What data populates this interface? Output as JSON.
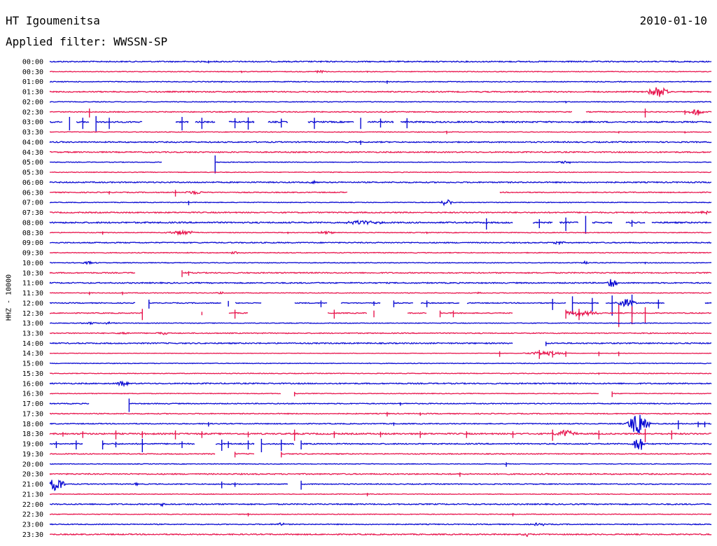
{
  "header": {
    "station": "HT Igoumenitsa",
    "filter": "Applied filter: WWSSN-SP",
    "date": "2010-01-10"
  },
  "chart_data": {
    "type": "seismogram-helicorder",
    "ylabel": "HHZ - 10000",
    "colors": {
      "even": "#0a0ad2",
      "odd": "#e8174f"
    },
    "rows": [
      {
        "label": "00:00",
        "noise": 1,
        "gaps": [],
        "spikes": [
          [
            0.24,
            2.5
          ],
          [
            0.41,
            1.5
          ]
        ],
        "bursts": []
      },
      {
        "label": "00:30",
        "noise": 0.6,
        "gaps": [],
        "spikes": [
          [
            0.29,
            2
          ],
          [
            0.48,
            1.5
          ]
        ],
        "bursts": [
          [
            0.41,
            0.015,
            2
          ]
        ]
      },
      {
        "label": "01:00",
        "noise": 0.7,
        "gaps": [],
        "spikes": [
          [
            0.51,
            3
          ],
          [
            0.26,
            1.5
          ]
        ],
        "bursts": []
      },
      {
        "label": "01:30",
        "noise": 1,
        "gaps": [],
        "spikes": [],
        "bursts": [
          [
            0.92,
            0.02,
            9
          ]
        ]
      },
      {
        "label": "02:00",
        "noise": 0.6,
        "gaps": [],
        "spikes": [
          [
            0.78,
            2
          ],
          [
            0.28,
            1.5
          ]
        ],
        "bursts": []
      },
      {
        "label": "02:30",
        "noise": 0.8,
        "gaps": [
          [
            0.79,
            0.81
          ]
        ],
        "spikes": [
          [
            0.06,
            8
          ],
          [
            0.9,
            8
          ],
          [
            0.96,
            4
          ],
          [
            0.98,
            5
          ]
        ],
        "bursts": [
          [
            0.975,
            0.02,
            4
          ]
        ]
      },
      {
        "label": "03:00",
        "noise": 1.2,
        "gaps": [
          [
            0.02,
            0.04
          ],
          [
            0.06,
            0.07
          ],
          [
            0.14,
            0.19
          ],
          [
            0.21,
            0.22
          ],
          [
            0.25,
            0.27
          ],
          [
            0.31,
            0.33
          ],
          [
            0.36,
            0.39
          ],
          [
            0.46,
            0.48
          ],
          [
            0.52,
            0.53
          ]
        ],
        "spikes": [
          [
            0.03,
            12
          ],
          [
            0.05,
            10
          ],
          [
            0.07,
            14
          ],
          [
            0.09,
            10
          ],
          [
            0.2,
            12
          ],
          [
            0.23,
            10
          ],
          [
            0.28,
            9
          ],
          [
            0.3,
            11
          ],
          [
            0.35,
            8
          ],
          [
            0.4,
            10
          ],
          [
            0.47,
            10
          ],
          [
            0.5,
            8
          ],
          [
            0.54,
            9
          ]
        ],
        "bursts": []
      },
      {
        "label": "03:30",
        "noise": 0.6,
        "gaps": [],
        "spikes": [
          [
            0.6,
            3
          ],
          [
            0.86,
            2
          ],
          [
            0.96,
            2
          ]
        ],
        "bursts": []
      },
      {
        "label": "04:00",
        "noise": 1,
        "gaps": [],
        "spikes": [
          [
            0.47,
            4
          ]
        ],
        "bursts": []
      },
      {
        "label": "04:30",
        "noise": 1,
        "gaps": [],
        "spikes": [],
        "bursts": []
      },
      {
        "label": "05:00",
        "noise": 0.6,
        "gaps": [
          [
            0.17,
            0.25
          ]
        ],
        "spikes": [
          [
            0.25,
            16
          ]
        ],
        "bursts": [
          [
            0.78,
            0.02,
            2
          ]
        ]
      },
      {
        "label": "05:30",
        "noise": 0.6,
        "gaps": [],
        "spikes": [],
        "bursts": []
      },
      {
        "label": "06:00",
        "noise": 1,
        "gaps": [],
        "spikes": [],
        "bursts": [
          [
            0.4,
            0.01,
            2
          ]
        ]
      },
      {
        "label": "06:30",
        "noise": 0.8,
        "gaps": [
          [
            0.45,
            0.68
          ]
        ],
        "spikes": [
          [
            0.19,
            6
          ],
          [
            0.09,
            3
          ]
        ],
        "bursts": [
          [
            0.22,
            0.02,
            3
          ]
        ]
      },
      {
        "label": "07:00",
        "noise": 0.6,
        "gaps": [],
        "spikes": [
          [
            0.21,
            4
          ]
        ],
        "bursts": [
          [
            0.6,
            0.01,
            7
          ]
        ]
      },
      {
        "label": "07:30",
        "noise": 1,
        "gaps": [],
        "spikes": [],
        "bursts": [
          [
            0.99,
            0.01,
            3
          ]
        ]
      },
      {
        "label": "08:00",
        "noise": 1.2,
        "gaps": [
          [
            0.7,
            0.73
          ],
          [
            0.76,
            0.77
          ],
          [
            0.8,
            0.82
          ],
          [
            0.85,
            0.87
          ],
          [
            0.9,
            0.91
          ]
        ],
        "spikes": [
          [
            0.66,
            10
          ],
          [
            0.74,
            8
          ],
          [
            0.78,
            12
          ],
          [
            0.81,
            16
          ],
          [
            0.88,
            6
          ]
        ],
        "bursts": [
          [
            0.47,
            0.04,
            3
          ]
        ]
      },
      {
        "label": "08:30",
        "noise": 0.6,
        "gaps": [],
        "spikes": [
          [
            0.08,
            3
          ],
          [
            0.36,
            2
          ],
          [
            0.57,
            2
          ]
        ],
        "bursts": [
          [
            0.2,
            0.03,
            3
          ],
          [
            0.42,
            0.02,
            2
          ]
        ]
      },
      {
        "label": "09:00",
        "noise": 0.9,
        "gaps": [],
        "spikes": [
          [
            0.77,
            3
          ]
        ],
        "bursts": [
          [
            0.77,
            0.01,
            3
          ]
        ]
      },
      {
        "label": "09:30",
        "noise": 0.7,
        "gaps": [],
        "spikes": [],
        "bursts": [
          [
            0.28,
            0.01,
            2
          ]
        ]
      },
      {
        "label": "10:00",
        "noise": 0.6,
        "gaps": [],
        "spikes": [
          [
            0.9,
            2
          ]
        ],
        "bursts": [
          [
            0.06,
            0.015,
            2
          ],
          [
            0.81,
            0.01,
            2
          ]
        ]
      },
      {
        "label": "10:30",
        "noise": 0.9,
        "gaps": [
          [
            0.13,
            0.2
          ]
        ],
        "spikes": [
          [
            0.2,
            6
          ],
          [
            0.21,
            4
          ]
        ],
        "bursts": []
      },
      {
        "label": "11:00",
        "noise": 1,
        "gaps": [],
        "spikes": [],
        "bursts": [
          [
            0.85,
            0.01,
            8
          ]
        ]
      },
      {
        "label": "11:30",
        "noise": 0.6,
        "gaps": [],
        "spikes": [
          [
            0.06,
            3
          ],
          [
            0.11,
            3
          ]
        ],
        "bursts": [
          [
            0.26,
            0.01,
            2
          ],
          [
            0.65,
            0.005,
            3
          ]
        ]
      },
      {
        "label": "12:00",
        "noise": 0.8,
        "gaps": [
          [
            0.13,
            0.15
          ],
          [
            0.26,
            0.28
          ],
          [
            0.32,
            0.37
          ],
          [
            0.42,
            0.44
          ],
          [
            0.5,
            0.52
          ],
          [
            0.55,
            0.56
          ],
          [
            0.62,
            0.63
          ],
          [
            0.78,
            0.79
          ],
          [
            0.83,
            0.84
          ],
          [
            0.93,
            0.99
          ]
        ],
        "spikes": [
          [
            0.15,
            8
          ],
          [
            0.27,
            5
          ],
          [
            0.41,
            6
          ],
          [
            0.49,
            4
          ],
          [
            0.52,
            6
          ],
          [
            0.57,
            6
          ],
          [
            0.76,
            10
          ],
          [
            0.79,
            16
          ],
          [
            0.82,
            12
          ],
          [
            0.85,
            18
          ],
          [
            0.88,
            20
          ],
          [
            0.92,
            8
          ]
        ],
        "bursts": [
          [
            0.87,
            0.02,
            6
          ]
        ]
      },
      {
        "label": "12:30",
        "noise": 0.8,
        "gaps": [
          [
            0.14,
            0.27
          ],
          [
            0.3,
            0.42
          ],
          [
            0.48,
            0.54
          ],
          [
            0.57,
            0.59
          ],
          [
            0.7,
            0.78
          ]
        ],
        "spikes": [
          [
            0.14,
            10
          ],
          [
            0.23,
            3
          ],
          [
            0.28,
            8
          ],
          [
            0.43,
            8
          ],
          [
            0.49,
            6
          ],
          [
            0.59,
            6
          ],
          [
            0.61,
            6
          ],
          [
            0.78,
            8
          ],
          [
            0.8,
            10
          ],
          [
            0.86,
            20
          ],
          [
            0.88,
            16
          ],
          [
            0.9,
            14
          ]
        ],
        "bursts": [
          [
            0.8,
            0.04,
            4
          ]
        ]
      },
      {
        "label": "13:00",
        "noise": 0.6,
        "gaps": [],
        "spikes": [],
        "bursts": [
          [
            0.06,
            0.015,
            2
          ],
          [
            0.09,
            0.01,
            2
          ]
        ]
      },
      {
        "label": "13:30",
        "noise": 0.8,
        "gaps": [],
        "spikes": [],
        "bursts": [
          [
            0.11,
            0.015,
            2
          ],
          [
            0.17,
            0.015,
            2
          ]
        ]
      },
      {
        "label": "14:00",
        "noise": 1,
        "gaps": [
          [
            0.7,
            0.75
          ]
        ],
        "spikes": [
          [
            0.75,
            4
          ]
        ],
        "bursts": []
      },
      {
        "label": "14:30",
        "noise": 0.4,
        "gaps": [],
        "spikes": [
          [
            0.68,
            5
          ],
          [
            0.74,
            8
          ],
          [
            0.76,
            6
          ],
          [
            0.78,
            5
          ],
          [
            0.83,
            4
          ],
          [
            0.86,
            4
          ]
        ],
        "bursts": [
          [
            0.75,
            0.04,
            3
          ]
        ]
      },
      {
        "label": "15:00",
        "noise": 0.6,
        "gaps": [],
        "spikes": [],
        "bursts": []
      },
      {
        "label": "15:30",
        "noise": 0.6,
        "gaps": [],
        "spikes": [
          [
            0.83,
            2
          ]
        ],
        "bursts": []
      },
      {
        "label": "16:00",
        "noise": 1,
        "gaps": [],
        "spikes": [],
        "bursts": [
          [
            0.11,
            0.012,
            4
          ]
        ]
      },
      {
        "label": "16:30",
        "noise": 0.6,
        "gaps": [
          [
            0.35,
            0.37
          ],
          [
            0.83,
            0.85
          ]
        ],
        "spikes": [
          [
            0.37,
            4
          ],
          [
            0.85,
            5
          ]
        ],
        "bursts": []
      },
      {
        "label": "17:00",
        "noise": 0.8,
        "gaps": [
          [
            0.06,
            0.12
          ]
        ],
        "spikes": [
          [
            0.12,
            12
          ],
          [
            0.53,
            3
          ]
        ],
        "bursts": []
      },
      {
        "label": "17:30",
        "noise": 0.8,
        "gaps": [],
        "spikes": [
          [
            0.51,
            4
          ],
          [
            0.56,
            3
          ]
        ],
        "bursts": []
      },
      {
        "label": "18:00",
        "noise": 0.8,
        "gaps": [],
        "spikes": [
          [
            0.24,
            4
          ],
          [
            0.52,
            3
          ],
          [
            0.95,
            8
          ],
          [
            0.98,
            5
          ],
          [
            0.99,
            5
          ]
        ],
        "bursts": [
          [
            0.89,
            0.02,
            20
          ]
        ]
      },
      {
        "label": "18:30",
        "noise": 1.2,
        "gaps": [],
        "spikes": [
          [
            0.02,
            4
          ],
          [
            0.05,
            6
          ],
          [
            0.1,
            8
          ],
          [
            0.14,
            6
          ],
          [
            0.19,
            8
          ],
          [
            0.23,
            6
          ],
          [
            0.3,
            5
          ],
          [
            0.37,
            10
          ],
          [
            0.43,
            6
          ],
          [
            0.5,
            5
          ],
          [
            0.56,
            6
          ],
          [
            0.63,
            6
          ],
          [
            0.7,
            6
          ],
          [
            0.76,
            10
          ],
          [
            0.83,
            8
          ],
          [
            0.9,
            12
          ],
          [
            0.94,
            8
          ]
        ],
        "bursts": [
          [
            0.78,
            0.02,
            6
          ]
        ]
      },
      {
        "label": "19:00",
        "noise": 1,
        "gaps": [
          [
            0.05,
            0.08
          ],
          [
            0.22,
            0.25
          ],
          [
            0.31,
            0.32
          ],
          [
            0.37,
            0.38
          ]
        ],
        "spikes": [
          [
            0.01,
            6
          ],
          [
            0.04,
            8
          ],
          [
            0.08,
            8
          ],
          [
            0.1,
            5
          ],
          [
            0.14,
            12
          ],
          [
            0.2,
            6
          ],
          [
            0.26,
            10
          ],
          [
            0.27,
            6
          ],
          [
            0.3,
            8
          ],
          [
            0.32,
            12
          ],
          [
            0.35,
            10
          ],
          [
            0.38,
            8
          ]
        ],
        "bursts": [
          [
            0.89,
            0.01,
            14
          ]
        ]
      },
      {
        "label": "19:30",
        "noise": 0.8,
        "gaps": [
          [
            0.25,
            0.28
          ],
          [
            0.31,
            0.35
          ]
        ],
        "spikes": [
          [
            0.28,
            5
          ],
          [
            0.35,
            5
          ]
        ],
        "bursts": []
      },
      {
        "label": "20:00",
        "noise": 0.6,
        "gaps": [],
        "spikes": [
          [
            0.69,
            4
          ]
        ],
        "bursts": []
      },
      {
        "label": "20:30",
        "noise": 1,
        "gaps": [],
        "spikes": [
          [
            0.62,
            4
          ]
        ],
        "bursts": []
      },
      {
        "label": "21:00",
        "noise": 0.8,
        "gaps": [
          [
            0.36,
            0.38
          ]
        ],
        "spikes": [
          [
            0.26,
            6
          ],
          [
            0.28,
            4
          ],
          [
            0.38,
            8
          ]
        ],
        "bursts": [
          [
            0.01,
            0.015,
            12
          ],
          [
            0.13,
            0.005,
            2
          ]
        ]
      },
      {
        "label": "21:30",
        "noise": 0.6,
        "gaps": [],
        "spikes": [
          [
            0.48,
            3
          ]
        ],
        "bursts": []
      },
      {
        "label": "22:00",
        "noise": 1,
        "gaps": [],
        "spikes": [],
        "bursts": [
          [
            0.17,
            0.005,
            5
          ]
        ]
      },
      {
        "label": "22:30",
        "noise": 0.6,
        "gaps": [],
        "spikes": [
          [
            0.3,
            3
          ],
          [
            0.7,
            3
          ]
        ],
        "bursts": []
      },
      {
        "label": "23:00",
        "noise": 0.8,
        "gaps": [],
        "spikes": [],
        "bursts": [
          [
            0.35,
            0.008,
            3
          ],
          [
            0.74,
            0.015,
            2
          ]
        ]
      },
      {
        "label": "23:30",
        "noise": 1,
        "gaps": [],
        "spikes": [],
        "bursts": [
          [
            0.72,
            0.01,
            3
          ]
        ]
      }
    ]
  }
}
